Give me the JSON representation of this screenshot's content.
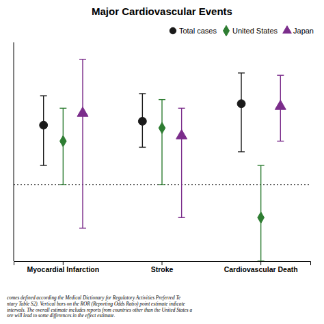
{
  "chart_data": {
    "type": "scatter",
    "title": "Major Cardiovascular Events",
    "categories": [
      "Myocardial Infarction",
      "Stroke",
      "Cardiovascular Death"
    ],
    "series": [
      {
        "name": "Total cases",
        "color": "#1a1a1a",
        "marker": "circle",
        "values": [
          3.5,
          3.8,
          5.5
        ],
        "low": [
          1.5,
          2.2,
          2.0
        ],
        "high": [
          6.5,
          6.8,
          10.5
        ]
      },
      {
        "name": "United States",
        "color": "#2e7d32",
        "marker": "diamond",
        "values": [
          2.5,
          3.3,
          0.5
        ],
        "low": [
          1.0,
          1.0,
          0.2
        ],
        "high": [
          5.0,
          6.0,
          1.5
        ]
      },
      {
        "name": "Japan",
        "color": "#7b2d8b",
        "marker": "triangle",
        "values": [
          4.5,
          2.8,
          5.2
        ],
        "low": [
          0.4,
          0.5,
          2.5
        ],
        "high": [
          14.0,
          5.0,
          10.0
        ]
      }
    ],
    "reference_line": 1.0,
    "ylim": [
      0.2,
      20.0
    ],
    "log": "y",
    "grid": false,
    "legend": "upper right",
    "tick_labels": "x",
    "footnote": "comes defined according the Medical Dictionary for Regulatory Activities Preferred Te\nntary Table S2). Vertical bars on the ROR (Reporting Odds Ratio) point estimate indicate\nintervals. The overall estimate includes reports from countries other than the United States a\nore will lead to some differences in the effect estimate."
  }
}
